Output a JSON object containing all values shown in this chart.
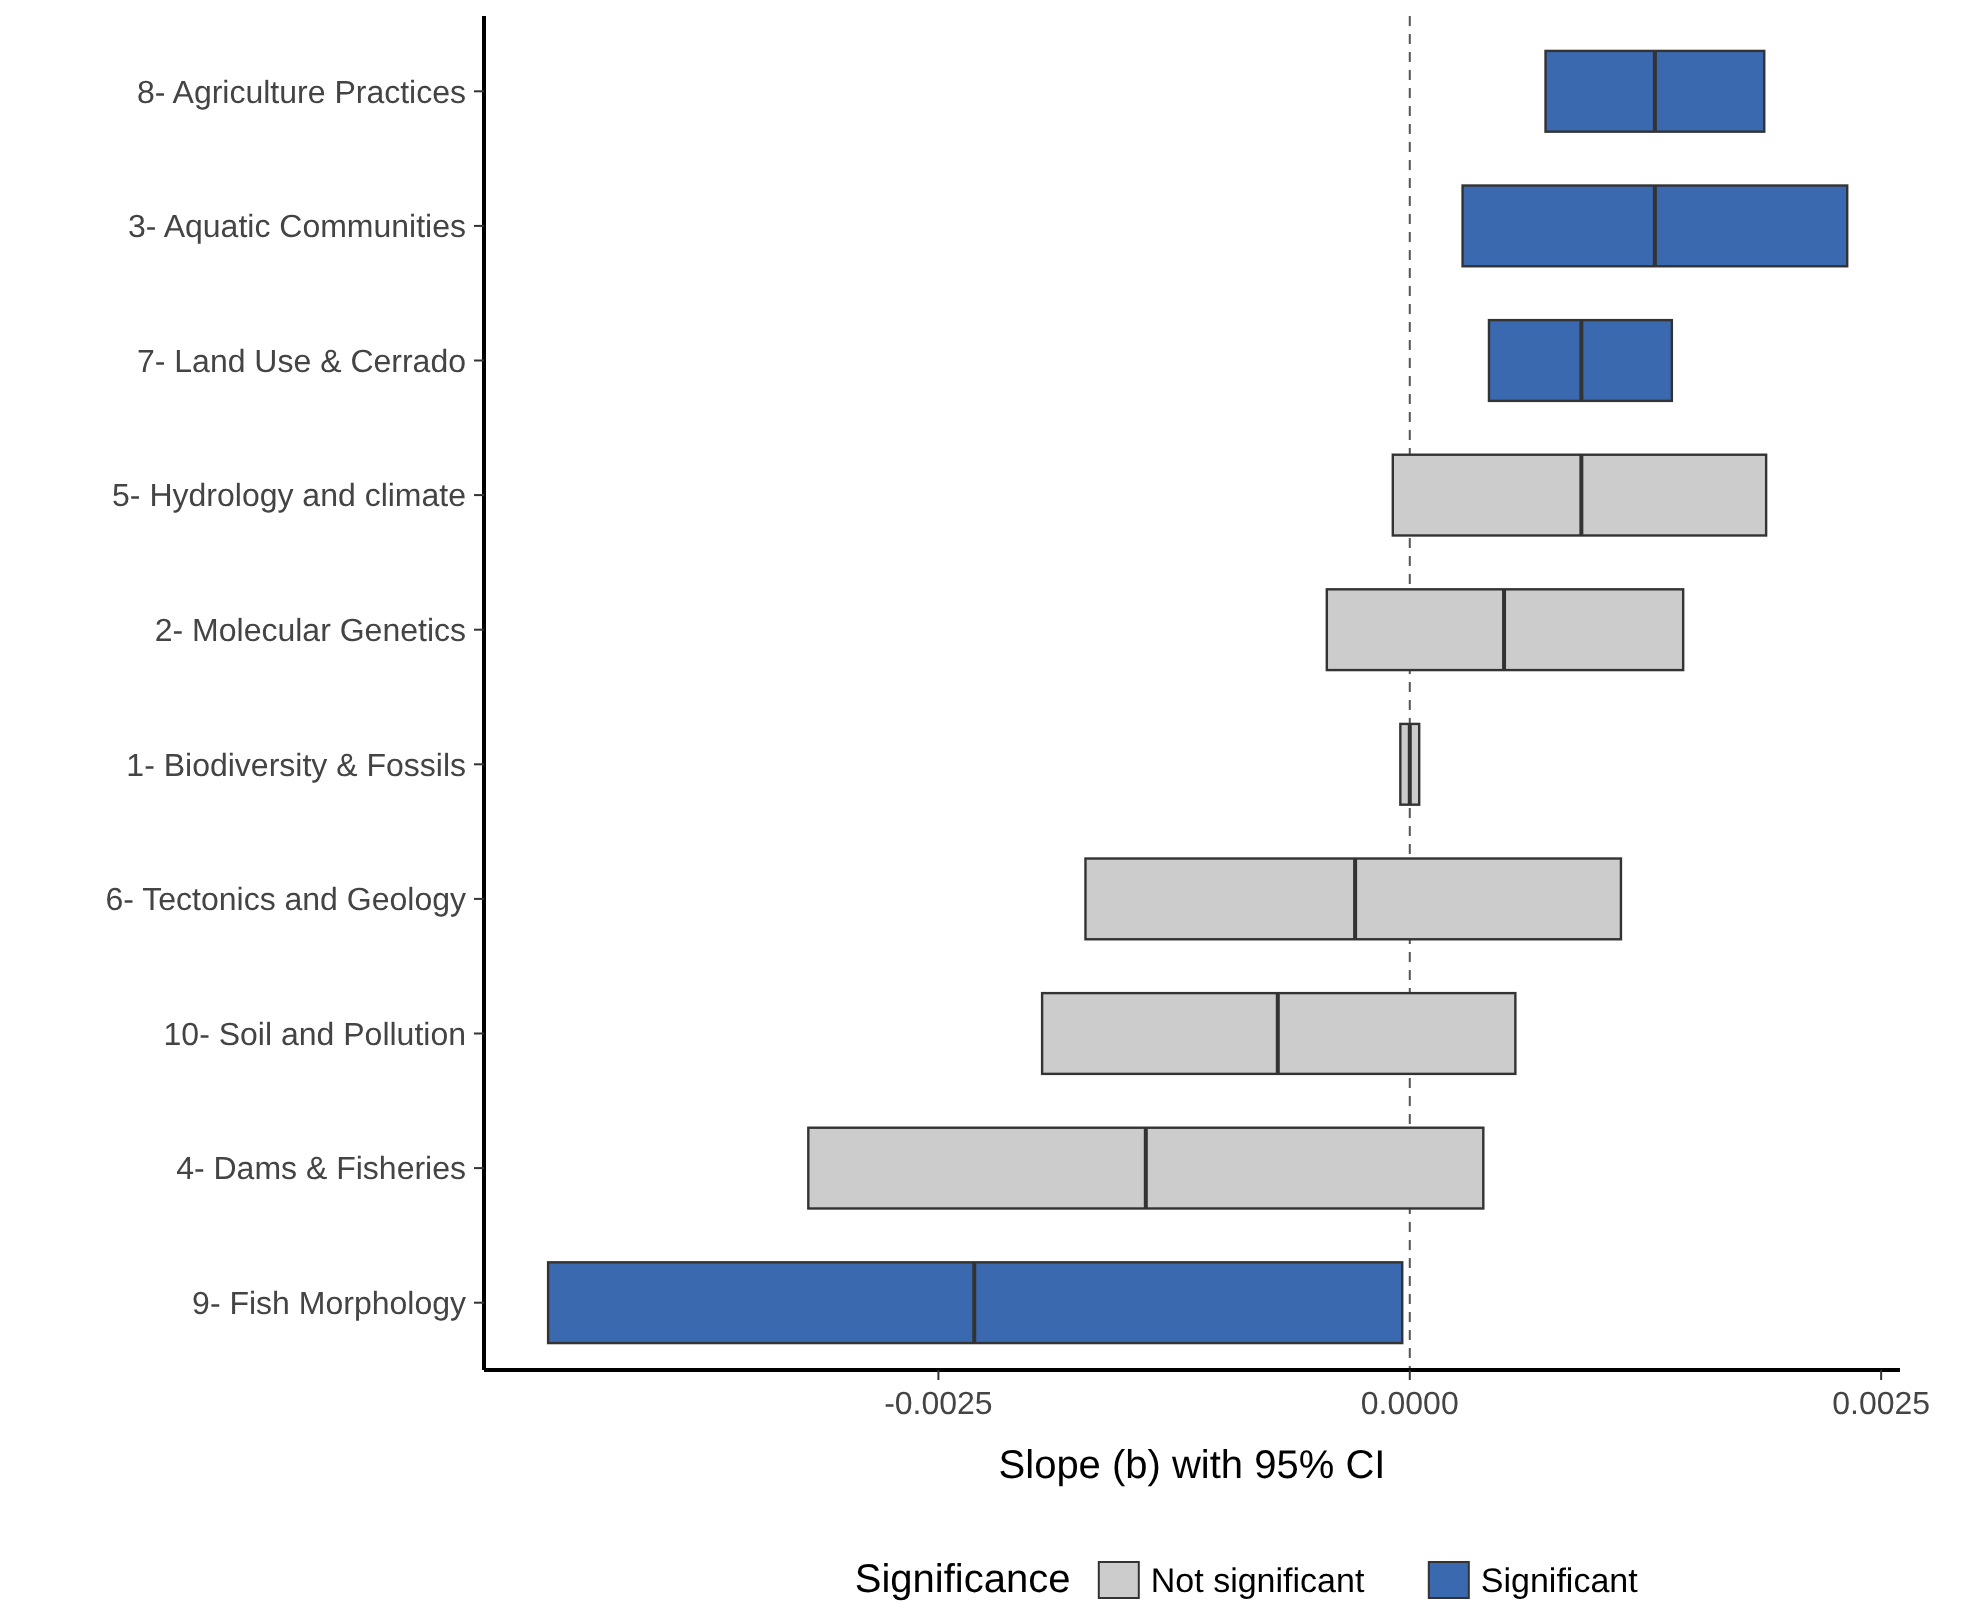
{
  "chart_data": {
    "type": "box",
    "orientation": "horizontal",
    "xlabel": "Slope (b) with 95% CI",
    "legend_title": "Significance",
    "legend": "bottom",
    "grid": false,
    "categories": [
      "8- Agriculture Practices",
      "3- Aquatic Communities",
      "7- Land Use & Cerrado",
      "5- Hydrology and climate",
      "2- Molecular Genetics",
      "1- Biodiversity & Fossils",
      "6- Tectonics and Geology",
      "10- Soil and Pollution",
      "4- Dams & Fisheries",
      "9- Fish Morphology"
    ],
    "xlim": [
      -0.00491,
      0.0026
    ],
    "xticks": [
      {
        "value": -0.0025,
        "label": "-0.0025"
      },
      {
        "value": 0,
        "label": "0.0000"
      },
      {
        "value": 0.0025,
        "label": "0.0025"
      }
    ],
    "ref_lines": [
      {
        "axis": "x",
        "value": 0,
        "line_style": "dashed",
        "color": "#555555"
      }
    ],
    "series": [
      {
        "name": "Not significant",
        "color": "#cccccc",
        "boxes": [
          null,
          null,
          null,
          {
            "low": -9e-05,
            "q1": -9e-05,
            "median": 0.00091,
            "q3": 0.00189,
            "high": 0.00189
          },
          {
            "low": -0.00044,
            "q1": -0.00044,
            "median": 0.0005,
            "q3": 0.00145,
            "high": 0.00145
          },
          {
            "low": -5e-05,
            "q1": -5e-05,
            "median": 0,
            "q3": 5e-05,
            "high": 5e-05
          },
          {
            "low": -0.00172,
            "q1": -0.00172,
            "median": -0.00029,
            "q3": 0.00112,
            "high": 0.00112
          },
          {
            "low": -0.00195,
            "q1": -0.00195,
            "median": -0.0007,
            "q3": 0.00056,
            "high": 0.00056
          },
          {
            "low": -0.00319,
            "q1": -0.00319,
            "median": -0.0014,
            "q3": 0.00039,
            "high": 0.00039
          },
          null
        ]
      },
      {
        "name": "Significant",
        "color": "#3a69b0",
        "boxes": [
          {
            "low": 0.00072,
            "q1": 0.00072,
            "median": 0.0013,
            "q3": 0.00188,
            "high": 0.00188
          },
          {
            "low": 0.00028,
            "q1": 0.00028,
            "median": 0.0013,
            "q3": 0.00232,
            "high": 0.00232
          },
          {
            "low": 0.00042,
            "q1": 0.00042,
            "median": 0.00091,
            "q3": 0.00139,
            "high": 0.00139
          },
          null,
          null,
          null,
          null,
          null,
          null,
          {
            "low": -0.00457,
            "q1": -0.00457,
            "median": -0.00231,
            "q3": -4e-05,
            "high": -4e-05
          }
        ]
      }
    ]
  }
}
